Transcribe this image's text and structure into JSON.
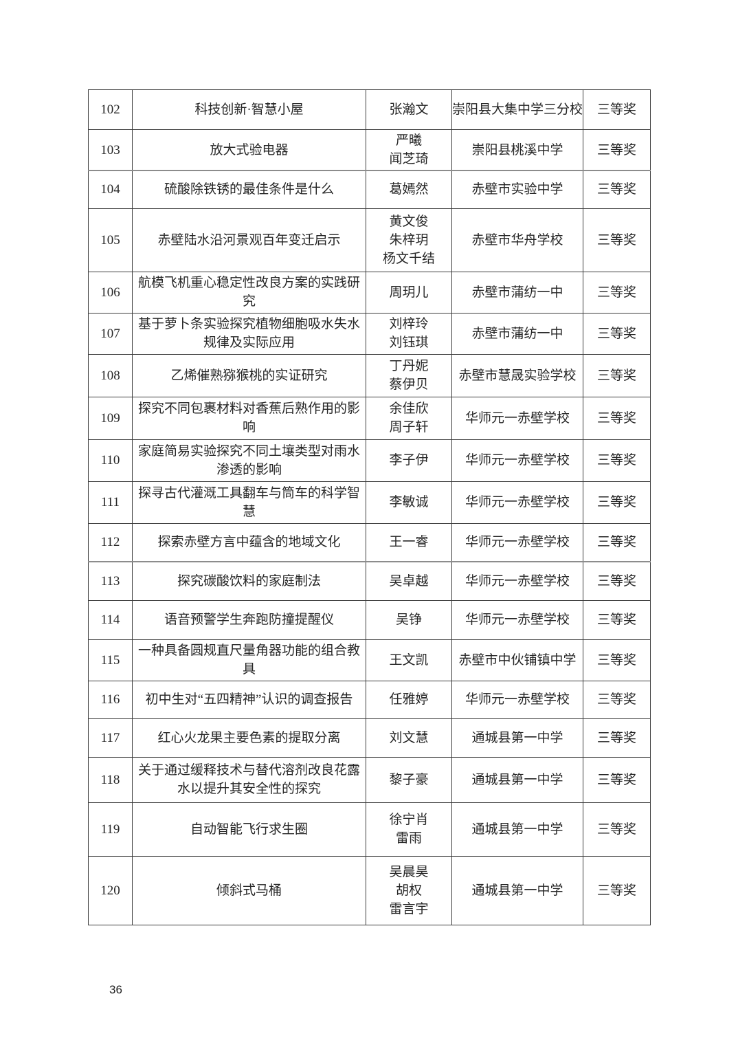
{
  "page": {
    "number": "36"
  },
  "table": {
    "award_color": "#262626",
    "rows": [
      {
        "no": "102",
        "title": "科技创新·智慧小屋",
        "authors": [
          "张瀚文"
        ],
        "school": "崇阳县大集中学三分校",
        "award": "三等奖"
      },
      {
        "no": "103",
        "title": "放大式验电器",
        "authors": [
          "严曦",
          "闻芝琦"
        ],
        "school": "崇阳县桃溪中学",
        "award": "三等奖"
      },
      {
        "no": "104",
        "title": "硫酸除铁锈的最佳条件是什么",
        "authors": [
          "葛嫣然"
        ],
        "school": "赤壁市实验中学",
        "award": "三等奖"
      },
      {
        "no": "105",
        "title": "赤壁陆水沿河景观百年变迁启示",
        "authors": [
          "黄文俊",
          "朱梓玥",
          "杨文千结"
        ],
        "school": "赤壁市华舟学校",
        "award": "三等奖"
      },
      {
        "no": "106",
        "title": "航模飞机重心稳定性改良方案的实践研究",
        "authors": [
          "周玥儿"
        ],
        "school": "赤壁市蒲纺一中",
        "award": "三等奖"
      },
      {
        "no": "107",
        "title": "基于萝卜条实验探究植物细胞吸水失水规律及实际应用",
        "authors": [
          "刘梓玲",
          "刘钰琪"
        ],
        "school": "赤壁市蒲纺一中",
        "award": "三等奖"
      },
      {
        "no": "108",
        "title": "乙烯催熟猕猴桃的实证研究",
        "authors": [
          "丁丹妮",
          "蔡伊贝"
        ],
        "school": "赤壁市慧晟实验学校",
        "award": "三等奖"
      },
      {
        "no": "109",
        "title": "探究不同包裹材料对香蕉后熟作用的影响",
        "authors": [
          "余佳欣",
          "周子轩"
        ],
        "school": "华师元一赤壁学校",
        "award": "三等奖"
      },
      {
        "no": "110",
        "title": "家庭简易实验探究不同土壤类型对雨水渗透的影响",
        "authors": [
          "李子伊"
        ],
        "school": "华师元一赤壁学校",
        "award": "三等奖"
      },
      {
        "no": "111",
        "title": "探寻古代灌溉工具翻车与筒车的科学智慧",
        "authors": [
          "李敏诚"
        ],
        "school": "华师元一赤壁学校",
        "award": "三等奖"
      },
      {
        "no": "112",
        "title": "探索赤壁方言中蕴含的地域文化",
        "authors": [
          "王一睿"
        ],
        "school": "华师元一赤壁学校",
        "award": "三等奖"
      },
      {
        "no": "113",
        "title": "探究碳酸饮料的家庭制法",
        "authors": [
          "吴卓越"
        ],
        "school": "华师元一赤壁学校",
        "award": "三等奖"
      },
      {
        "no": "114",
        "title": "语音预警学生奔跑防撞提醒仪",
        "authors": [
          "吴铮"
        ],
        "school": "华师元一赤壁学校",
        "award": "三等奖"
      },
      {
        "no": "115",
        "title": "一种具备圆规直尺量角器功能的组合教具",
        "authors": [
          "王文凯"
        ],
        "school": "赤壁市中伙铺镇中学",
        "award": "三等奖"
      },
      {
        "no": "116",
        "title": "初中生对“五四精神”认识的调查报告",
        "authors": [
          "任雅婷"
        ],
        "school": "华师元一赤壁学校",
        "award": "三等奖"
      },
      {
        "no": "117",
        "title": "红心火龙果主要色素的提取分离",
        "authors": [
          "刘文慧"
        ],
        "school": "通城县第一中学",
        "award": "三等奖"
      },
      {
        "no": "118",
        "title": "关于通过缓释技术与替代溶剂改良花露水以提升其安全性的探究",
        "authors": [
          "黎子豪"
        ],
        "school": "通城县第一中学",
        "award": "三等奖"
      },
      {
        "no": "119",
        "title": "自动智能飞行求生圈",
        "authors": [
          "徐宁肖",
          "雷雨"
        ],
        "school": "通城县第一中学",
        "award": "三等奖"
      },
      {
        "no": "120",
        "title": "倾斜式马桶",
        "authors": [
          "吴晨昊",
          "胡权",
          "雷言宇"
        ],
        "school": "通城县第一中学",
        "award": "三等奖"
      }
    ]
  }
}
